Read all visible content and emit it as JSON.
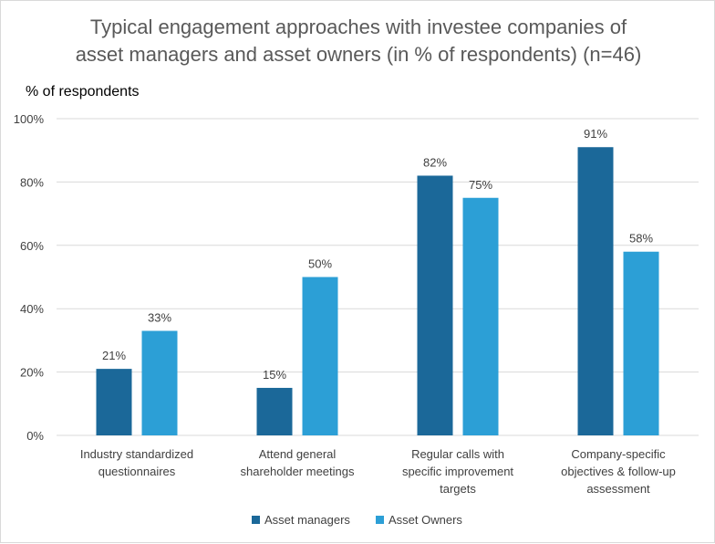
{
  "chart_data": {
    "type": "bar",
    "title_lines": [
      "Typical engagement approaches with investee companies of",
      "asset managers and asset owners (in % of respondents) (n=46)"
    ],
    "ylabel": "% of respondents",
    "xlabel": "",
    "ylim": [
      0,
      100
    ],
    "yticks": [
      "0%",
      "20%",
      "40%",
      "60%",
      "80%",
      "100%"
    ],
    "grid": true,
    "legend_position": "bottom",
    "categories": [
      [
        "Industry standardized",
        "questionnaires"
      ],
      [
        "Attend general",
        "shareholder meetings"
      ],
      [
        "Regular calls with",
        "specific improvement",
        "targets"
      ],
      [
        "Company-specific",
        "objectives & follow-up",
        "assessment"
      ]
    ],
    "series": [
      {
        "name": "Asset managers",
        "color": "#1b6899",
        "values": [
          21,
          15,
          82,
          91
        ],
        "labels": [
          "21%",
          "15%",
          "82%",
          "91%"
        ]
      },
      {
        "name": "Asset Owners",
        "color": "#2c9fd6",
        "values": [
          33,
          50,
          75,
          58
        ],
        "labels": [
          "33%",
          "50%",
          "75%",
          "58%"
        ]
      }
    ]
  }
}
